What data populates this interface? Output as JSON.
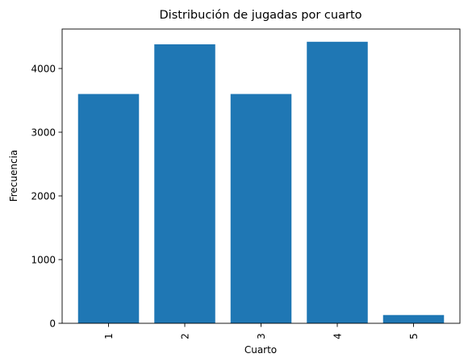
{
  "chart_data": {
    "type": "bar",
    "title": "Distribución de jugadas por cuarto",
    "xlabel": "Cuarto",
    "ylabel": "Frecuencia",
    "categories": [
      "1",
      "2",
      "3",
      "4",
      "5"
    ],
    "values": [
      3600,
      4380,
      3600,
      4420,
      130
    ],
    "ylim": [
      0,
      4620
    ],
    "yticks": [
      0,
      1000,
      2000,
      3000,
      4000
    ],
    "grid": false,
    "bar_color": "#1f77b4"
  }
}
